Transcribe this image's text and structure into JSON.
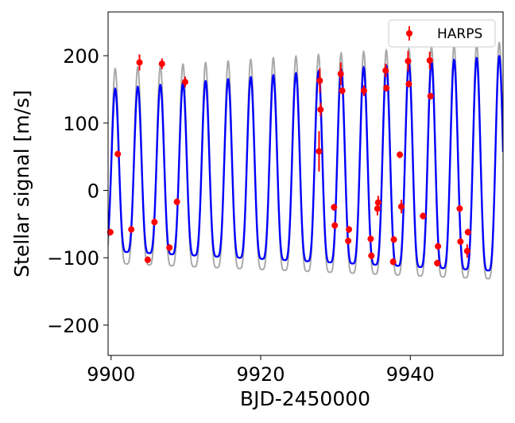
{
  "chart_data": {
    "type": "scatter",
    "xlabel": "BJD-2450000",
    "ylabel": "Stellar signal [m/s]",
    "xlim": [
      9899.6,
      9952.4
    ],
    "ylim": [
      -245,
      265
    ],
    "xticks": [
      9900,
      9920,
      9940
    ],
    "yticks": [
      -200,
      -100,
      0,
      100,
      200
    ],
    "xtick_labels": [
      "9900",
      "9920",
      "9940"
    ],
    "ytick_labels": [
      "−200",
      "−100",
      "0",
      "100",
      "200"
    ],
    "legend": {
      "position": "top-right",
      "entries": [
        "HARPS"
      ]
    },
    "grid": false,
    "colors": {
      "harps": "#ff0000",
      "blue_curve": "#0000ff",
      "gray_curve": "#a9a9a9"
    },
    "model_curves": {
      "period_days": 3.02,
      "phase_ref_x": 9900.55,
      "harmonic_ratio": 0.25,
      "blue": {
        "name": "",
        "amp_start": 150,
        "amp_end": 200
      },
      "gray": {
        "name": "",
        "amp_start": 180,
        "amp_end": 220
      }
    },
    "series": [
      {
        "name": "HARPS",
        "x": [
          9899.9,
          9900.9,
          9902.7,
          9903.8,
          9904.9,
          9905.8,
          9906.8,
          9907.8,
          9908.8,
          9909.9,
          9927.8,
          9927.9,
          9928.0,
          9929.8,
          9929.9,
          9930.7,
          9930.9,
          9931.7,
          9931.8,
          9933.8,
          9934.7,
          9934.8,
          9935.6,
          9935.7,
          9936.7,
          9936.8,
          9937.7,
          9937.8,
          9938.6,
          9938.8,
          9939.7,
          9939.8,
          9941.7,
          9942.6,
          9942.7,
          9943.6,
          9943.7,
          9946.6,
          9946.7,
          9947.6,
          9947.7
        ],
        "y": [
          -62,
          54,
          -58,
          190,
          -103,
          -47,
          188,
          -85,
          -17,
          161,
          58,
          163,
          120,
          -25,
          -52,
          173,
          148,
          -75,
          -58,
          148,
          -72,
          -97,
          -27,
          -18,
          178,
          152,
          -106,
          -73,
          53,
          -24,
          192,
          158,
          -38,
          193,
          140,
          -108,
          -83,
          -27,
          -76,
          -90,
          -62
        ],
        "yerr": [
          5,
          5,
          5,
          12,
          5,
          5,
          8,
          5,
          5,
          8,
          30,
          18,
          10,
          5,
          5,
          17,
          5,
          5,
          5,
          8,
          5,
          5,
          10,
          10,
          10,
          5,
          5,
          5,
          5,
          10,
          15,
          5,
          5,
          13,
          5,
          5,
          5,
          5,
          5,
          10,
          5
        ]
      }
    ]
  }
}
